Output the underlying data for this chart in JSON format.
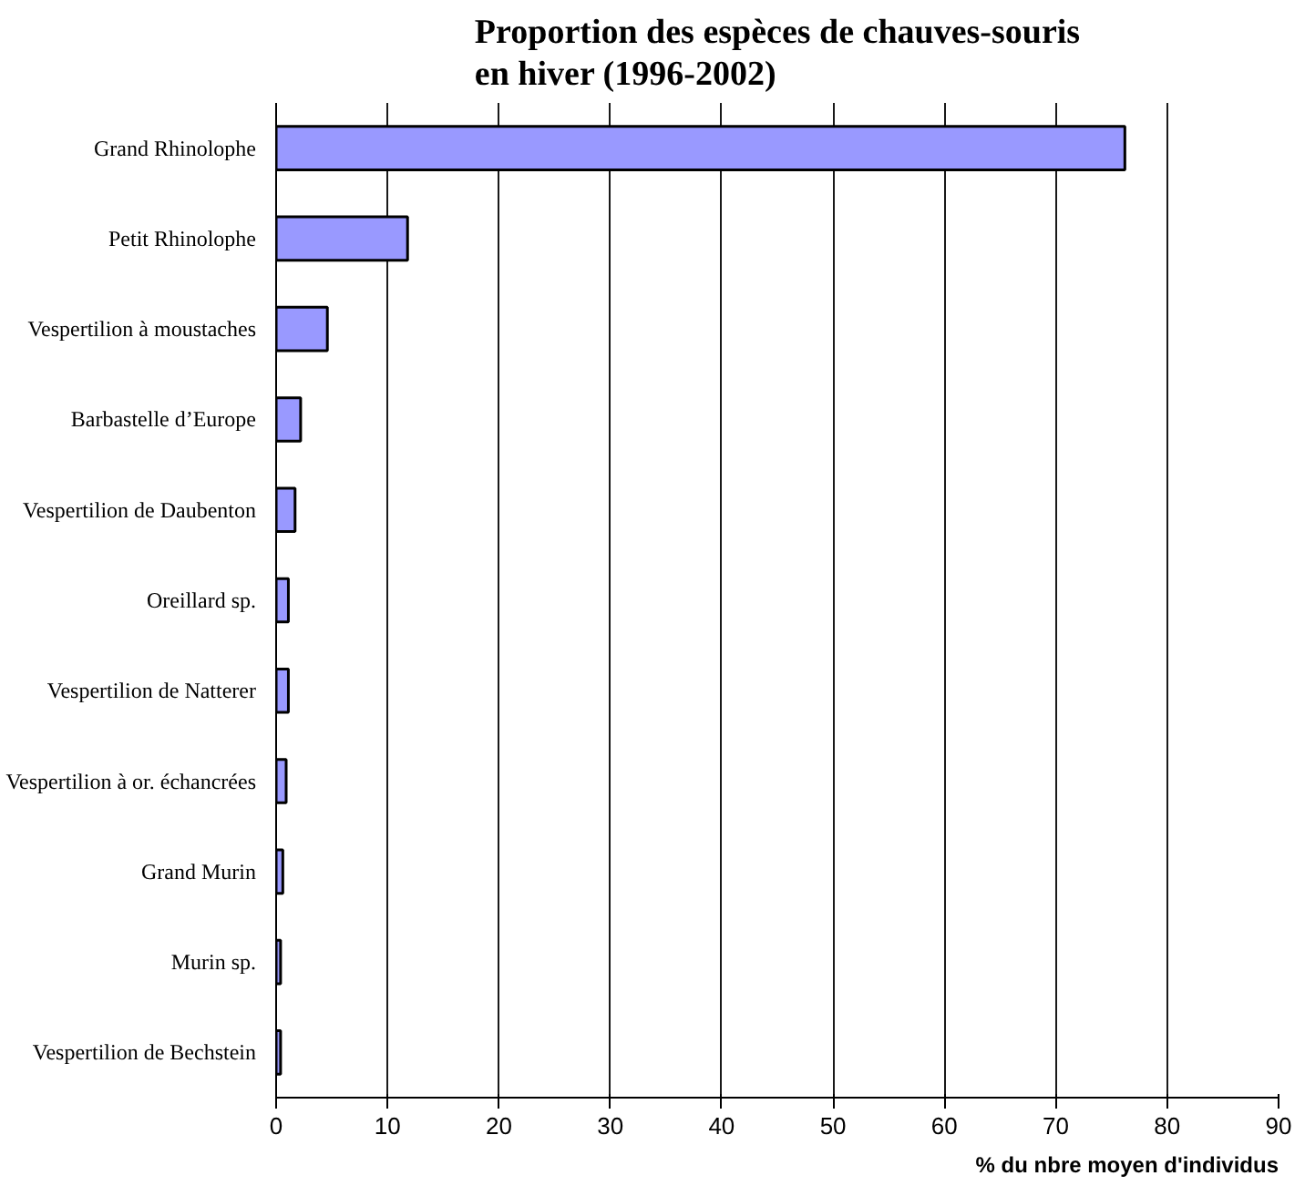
{
  "chart_data": {
    "type": "bar",
    "orientation": "horizontal",
    "title": "Proportion des espèces de chauves-souris en hiver (1996-2002)",
    "xlabel": "% du nbre moyen d'individus",
    "categories": [
      "Grand Rhinolophe",
      "Petit Rhinolophe",
      "Vespertilion à moustaches",
      "Barbastelle d’Europe",
      "Vespertilion de Daubenton",
      "Oreillard sp.",
      "Vespertilion de Natterer",
      "Vespertilion à or. échancrées",
      "Grand Murin",
      "Murin sp.",
      "Vespertilion de Bechstein"
    ],
    "values": [
      76.2,
      11.8,
      4.6,
      2.2,
      1.7,
      1.1,
      1.1,
      0.9,
      0.6,
      0.4,
      0.4
    ],
    "color": "#9999ff",
    "xlim": [
      0,
      90
    ],
    "xticks": [
      0,
      10,
      20,
      30,
      40,
      50,
      60,
      70,
      80,
      90
    ],
    "grid": "x"
  }
}
